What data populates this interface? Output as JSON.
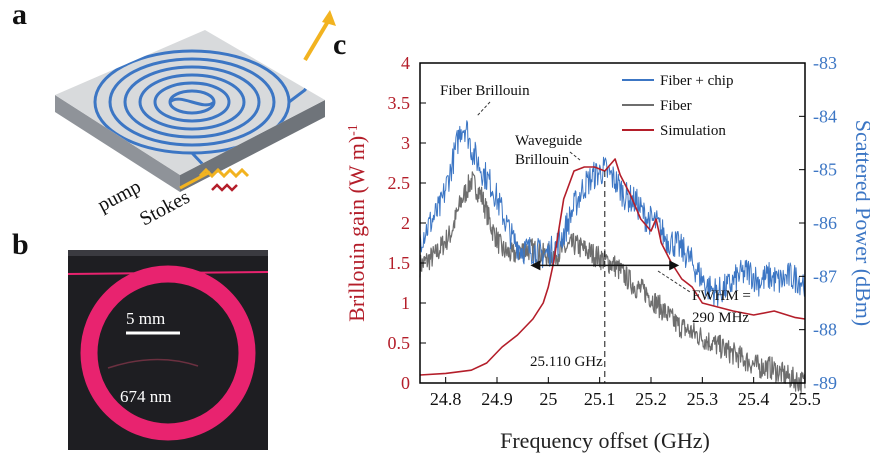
{
  "panels": {
    "a": "a",
    "b": "b",
    "c": "c"
  },
  "panel_a": {
    "label_pump": "pump",
    "label_stokes": "Stokes"
  },
  "panel_b": {
    "scale_text": "5 mm",
    "thickness_text": "674 nm"
  },
  "colors": {
    "blue": "#3c76c4",
    "gray": "#6e6e6e",
    "red": "#b41e2a",
    "ring": "#e8236f"
  },
  "chart_data": {
    "type": "line",
    "xlabel": "Frequency offset (GHz)",
    "ylabel_left": "Brillouin gain (W m)",
    "ylabel_left_sup": "-1",
    "ylabel_right": "Scattered Power (dBm)",
    "xlim": [
      24.75,
      25.5
    ],
    "ylim_left": [
      0,
      4
    ],
    "ylim_right": [
      -89,
      -83
    ],
    "x_ticks": [
      24.8,
      24.9,
      25.0,
      25.1,
      25.2,
      25.3,
      25.4,
      25.5
    ],
    "x_tick_labels": [
      "24.8",
      "24.9",
      "25",
      "25.1",
      "25.2",
      "25.3",
      "25.4",
      "25.5"
    ],
    "y_left_ticks": [
      0,
      0.5,
      1,
      1.5,
      2,
      2.5,
      3,
      3.5,
      4
    ],
    "y_left_tick_labels": [
      "0",
      "0.5",
      "1",
      "1.5",
      "2",
      "2.5",
      "3",
      "3.5",
      "4"
    ],
    "y_right_ticks": [
      -89,
      -88,
      -87,
      -86,
      -85,
      -84,
      -83
    ],
    "y_right_tick_labels": [
      "-89",
      "-88",
      "-87",
      "-86",
      "-85",
      "-84",
      "-83"
    ],
    "legend": [
      {
        "label": "Fiber + chip",
        "color": "#3c76c4"
      },
      {
        "label": "Fiber",
        "color": "#6e6e6e"
      },
      {
        "label": "Simulation",
        "color": "#b41e2a"
      }
    ],
    "series": [
      {
        "name": "Fiber + chip",
        "axis": "right",
        "x": [
          24.75,
          24.77,
          24.79,
          24.81,
          24.82,
          24.83,
          24.84,
          24.85,
          24.87,
          24.89,
          24.91,
          24.93,
          24.95,
          24.97,
          24.99,
          25.01,
          25.03,
          25.05,
          25.07,
          25.09,
          25.11,
          25.13,
          25.15,
          25.17,
          25.19,
          25.21,
          25.23,
          25.25,
          25.27,
          25.29,
          25.31,
          25.33,
          25.35,
          25.37,
          25.39,
          25.41,
          25.43,
          25.45,
          25.47,
          25.5
        ],
        "y": [
          -86.3,
          -86.0,
          -85.7,
          -85.0,
          -84.6,
          -84.2,
          -84.2,
          -84.6,
          -85.0,
          -85.3,
          -85.8,
          -86.3,
          -86.5,
          -86.5,
          -86.6,
          -86.5,
          -86.2,
          -85.7,
          -85.3,
          -85.1,
          -85.0,
          -85.2,
          -85.5,
          -85.6,
          -85.9,
          -86.0,
          -86.3,
          -86.4,
          -86.6,
          -86.9,
          -87.2,
          -87.3,
          -87.2,
          -87.0,
          -86.9,
          -87.1,
          -87.0,
          -87.1,
          -87.0,
          -87.1
        ]
      },
      {
        "name": "Fiber",
        "axis": "right",
        "x": [
          24.75,
          24.78,
          24.81,
          24.83,
          24.85,
          24.87,
          24.89,
          24.91,
          24.93,
          24.95,
          24.97,
          24.99,
          25.01,
          25.03,
          25.05,
          25.07,
          25.09,
          25.11,
          25.13,
          25.15,
          25.17,
          25.19,
          25.21,
          25.23,
          25.25,
          25.27,
          25.29,
          25.31,
          25.33,
          25.35,
          25.37,
          25.39,
          25.41,
          25.43,
          25.45,
          25.47,
          25.5
        ],
        "y": [
          -86.8,
          -86.6,
          -86.2,
          -85.6,
          -85.2,
          -85.5,
          -86.1,
          -86.5,
          -86.6,
          -86.5,
          -86.5,
          -86.6,
          -86.6,
          -86.5,
          -86.4,
          -86.5,
          -86.6,
          -86.7,
          -86.8,
          -87.0,
          -87.2,
          -87.3,
          -87.5,
          -87.7,
          -87.9,
          -88.0,
          -88.1,
          -88.2,
          -88.3,
          -88.4,
          -88.5,
          -88.6,
          -88.7,
          -88.7,
          -88.8,
          -88.9,
          -89.0
        ]
      },
      {
        "name": "Simulation",
        "axis": "left",
        "x": [
          24.75,
          24.8,
          24.85,
          24.88,
          24.91,
          24.94,
          24.97,
          24.99,
          25.0,
          25.01,
          25.02,
          25.03,
          25.05,
          25.07,
          25.09,
          25.11,
          25.13,
          25.14,
          25.16,
          25.18,
          25.2,
          25.21,
          25.22,
          25.24,
          25.26,
          25.28,
          25.3,
          25.33,
          25.36,
          25.4,
          25.44,
          25.48,
          25.5
        ],
        "y": [
          0.1,
          0.12,
          0.16,
          0.25,
          0.45,
          0.6,
          0.8,
          1.0,
          1.2,
          1.5,
          1.9,
          2.3,
          2.65,
          2.7,
          2.7,
          2.65,
          2.8,
          2.6,
          2.35,
          2.05,
          1.9,
          2.05,
          1.75,
          1.5,
          1.3,
          1.2,
          1.0,
          0.95,
          0.9,
          0.85,
          0.9,
          0.82,
          0.8
        ]
      }
    ],
    "annotations": {
      "fiber_brillouin": "Fiber Brillouin",
      "waveguide": "Waveguide",
      "brillouin": "Brillouin",
      "fwhm_line1": "FWHM =",
      "fwhm_line2": "290 MHz",
      "center_freq": "25.110 GHz"
    }
  }
}
